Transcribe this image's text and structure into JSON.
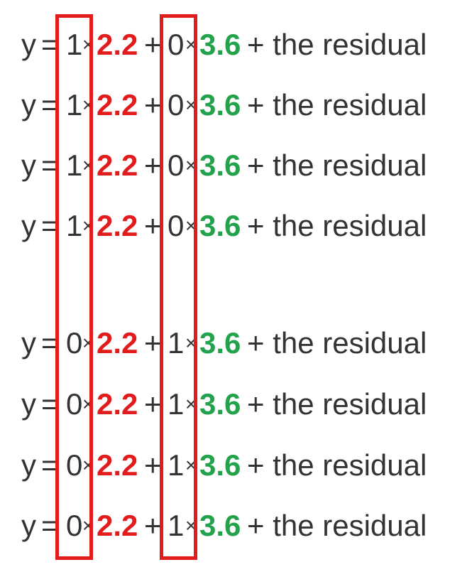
{
  "colors": {
    "text": "#333333",
    "coef1": "#e21c1c",
    "coef2": "#22a24a",
    "box_border": "#e21c1c"
  },
  "equations": [
    {
      "y": "y",
      "eq": "=",
      "c1": "1",
      "times1": "×",
      "b1": "2.2",
      "plus": "+",
      "c2": "0",
      "times2": "×",
      "b2": "3.6",
      "rest": "+ the residual"
    },
    {
      "y": "y",
      "eq": "=",
      "c1": "1",
      "times1": "×",
      "b1": "2.2",
      "plus": "+",
      "c2": "0",
      "times2": "×",
      "b2": "3.6",
      "rest": "+ the residual"
    },
    {
      "y": "y",
      "eq": "=",
      "c1": "1",
      "times1": "×",
      "b1": "2.2",
      "plus": "+",
      "c2": "0",
      "times2": "×",
      "b2": "3.6",
      "rest": "+ the residual"
    },
    {
      "y": "y",
      "eq": "=",
      "c1": "1",
      "times1": "×",
      "b1": "2.2",
      "plus": "+",
      "c2": "0",
      "times2": "×",
      "b2": "3.6",
      "rest": "+ the residual"
    },
    {
      "y": "y",
      "eq": "=",
      "c1": "0",
      "times1": "×",
      "b1": "2.2",
      "plus": "+",
      "c2": "1",
      "times2": "×",
      "b2": "3.6",
      "rest": "+ the residual"
    },
    {
      "y": "y",
      "eq": "=",
      "c1": "0",
      "times1": "×",
      "b1": "2.2",
      "plus": "+",
      "c2": "1",
      "times2": "×",
      "b2": "3.6",
      "rest": "+ the residual"
    },
    {
      "y": "y",
      "eq": "=",
      "c1": "0",
      "times1": "×",
      "b1": "2.2",
      "plus": "+",
      "c2": "1",
      "times2": "×",
      "b2": "3.6",
      "rest": "+ the residual"
    },
    {
      "y": "y",
      "eq": "=",
      "c1": "0",
      "times1": "×",
      "b1": "2.2",
      "plus": "+",
      "c2": "1",
      "times2": "×",
      "b2": "3.6",
      "rest": "+ the residual"
    }
  ]
}
